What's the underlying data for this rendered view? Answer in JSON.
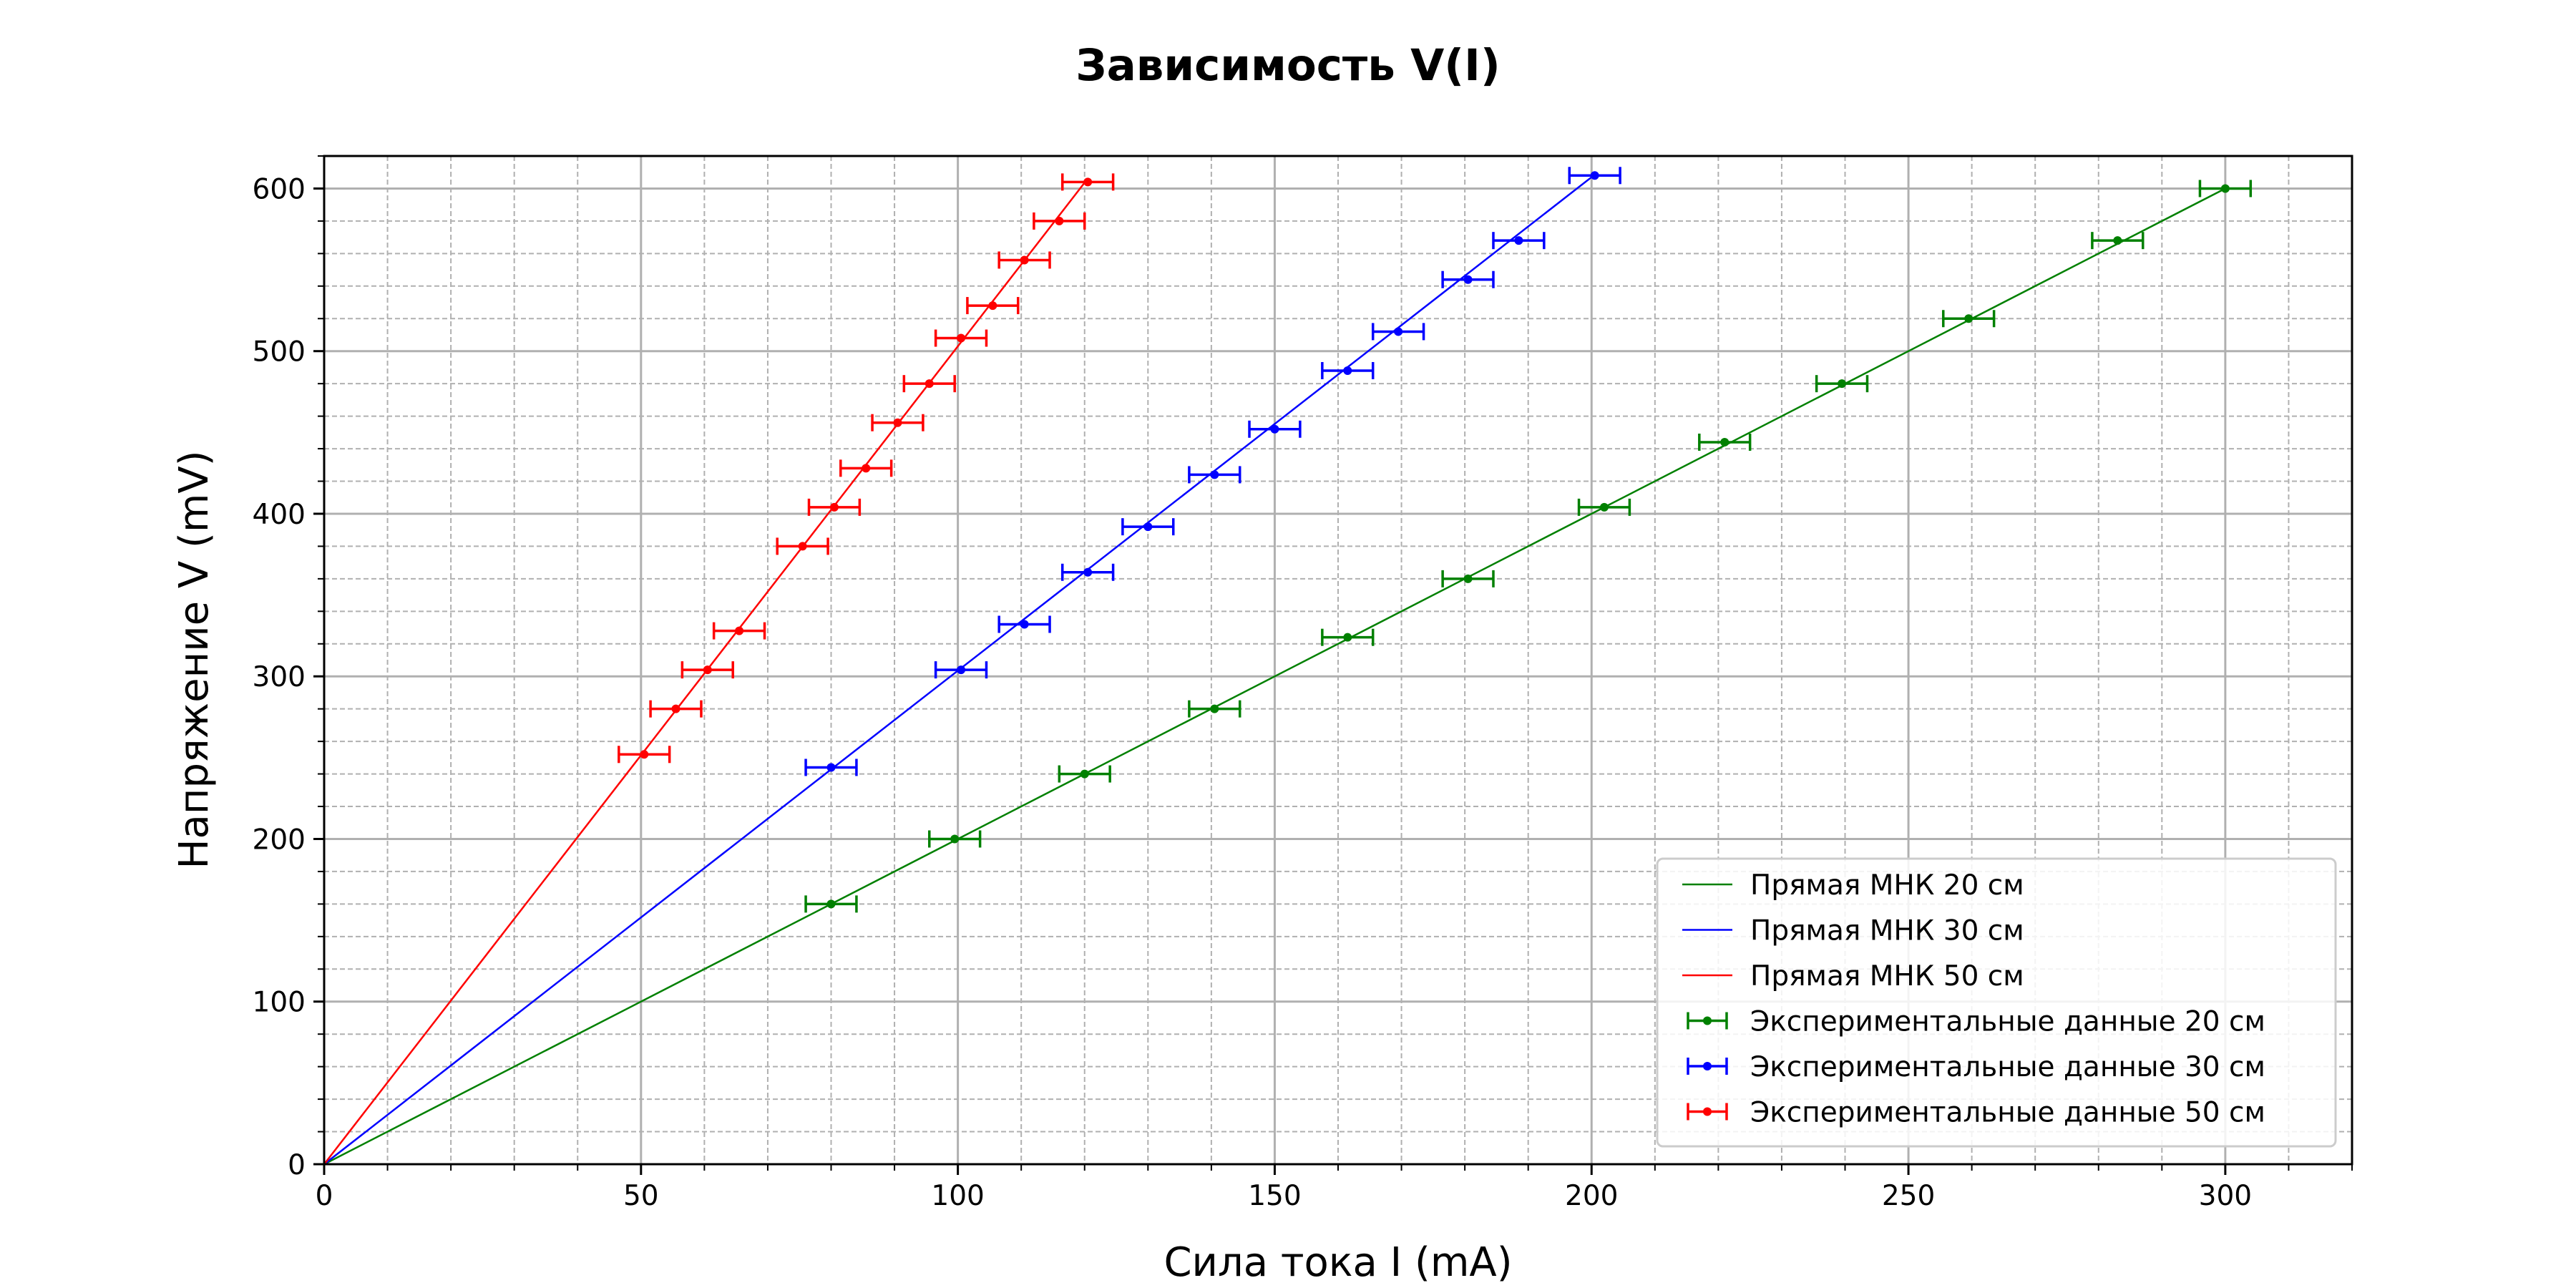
{
  "chart_data": {
    "type": "scatter",
    "title": "Зависимость V(I)",
    "xlabel": "Сила тока I (mA)",
    "ylabel": "Напряжение V (mV)",
    "xlim": [
      0,
      320
    ],
    "ylim": [
      0,
      620
    ],
    "xticks": [
      0,
      50,
      100,
      150,
      200,
      250,
      300
    ],
    "yticks": [
      0,
      100,
      200,
      300,
      400,
      500,
      600
    ],
    "x_minor_step": 10,
    "y_minor_step": 20,
    "grid": true,
    "legend_position": "lower right",
    "lines": [
      {
        "name": "Прямая МНК 20 см",
        "color": "#008000",
        "slope": 2.0,
        "x_range": [
          0,
          300
        ]
      },
      {
        "name": "Прямая МНК 30 см",
        "color": "#0000ff",
        "slope": 3.035,
        "x_range": [
          0,
          200.3
        ]
      },
      {
        "name": "Прямая МНК 50 см",
        "color": "#ff0000",
        "slope": 5.03,
        "x_range": [
          0,
          120
        ]
      }
    ],
    "series": [
      {
        "name": "Экспериментальные данные 20 см",
        "color": "#008000",
        "x_err": 4,
        "x": [
          80,
          99.5,
          120,
          140.5,
          161.5,
          180.5,
          202,
          221,
          239.5,
          259.5,
          283,
          300
        ],
        "y": [
          160,
          200,
          240,
          280,
          324,
          360,
          404,
          444,
          480,
          520,
          568,
          600
        ]
      },
      {
        "name": "Экспериментальные данные 30 см",
        "color": "#0000ff",
        "x_err": 4,
        "x": [
          80,
          100.5,
          110.5,
          120.5,
          130,
          140.5,
          150,
          161.5,
          169.5,
          180.5,
          188.5,
          200.5
        ],
        "y": [
          244,
          304,
          332,
          364,
          392,
          424,
          452,
          488,
          512,
          544,
          568,
          608
        ]
      },
      {
        "name": "Экспериментальные данные 50 см",
        "color": "#ff0000",
        "x_err": 4,
        "x": [
          50.5,
          55.5,
          60.5,
          65.5,
          75.5,
          80.5,
          85.5,
          90.5,
          95.5,
          100.5,
          105.5,
          110.5,
          116,
          120.5
        ],
        "y": [
          252,
          280,
          304,
          328,
          380,
          404,
          428,
          456,
          480,
          508,
          528,
          556,
          580,
          604
        ]
      }
    ]
  }
}
